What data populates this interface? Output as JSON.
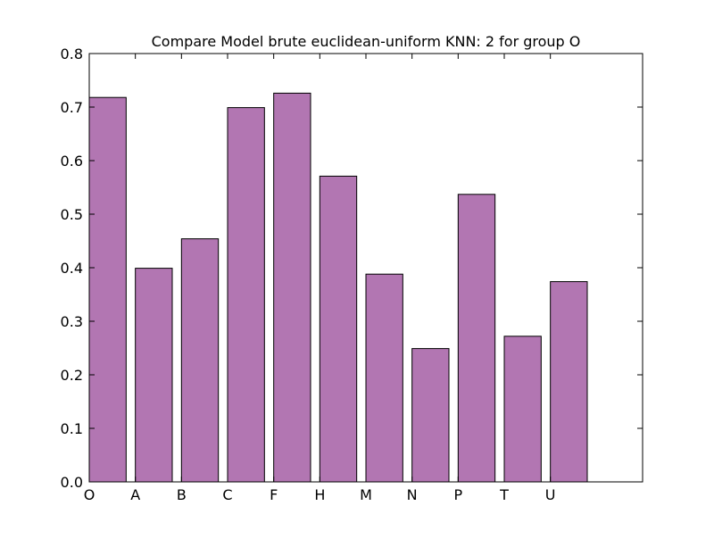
{
  "chart_data": {
    "type": "bar",
    "title": "Compare Model brute euclidean-uniform KNN: 2 for group O",
    "xlabel": "",
    "ylabel": "",
    "categories": [
      "O",
      "A",
      "B",
      "C",
      "F",
      "H",
      "M",
      "N",
      "P",
      "T",
      "U"
    ],
    "values": [
      0.718,
      0.399,
      0.454,
      0.699,
      0.726,
      0.571,
      0.388,
      0.249,
      0.537,
      0.272,
      0.374
    ],
    "ylim": [
      0,
      0.8
    ],
    "xlim": [
      0,
      12
    ],
    "yticks": [
      0.0,
      0.1,
      0.2,
      0.3,
      0.4,
      0.5,
      0.6,
      0.7,
      0.8
    ],
    "ytick_labels": [
      "0.0",
      "0.1",
      "0.2",
      "0.3",
      "0.4",
      "0.5",
      "0.6",
      "0.7",
      "0.8"
    ],
    "grid": false,
    "legend": "none",
    "colors": {
      "bar_fill": "#b276b2",
      "bar_edge": "#000000",
      "axes": "#000000"
    }
  }
}
